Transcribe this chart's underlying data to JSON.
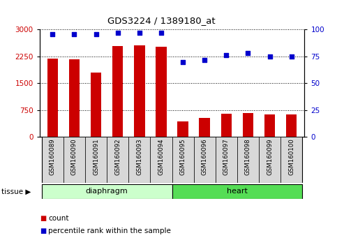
{
  "title": "GDS3224 / 1389180_at",
  "samples": [
    "GSM160089",
    "GSM160090",
    "GSM160091",
    "GSM160092",
    "GSM160093",
    "GSM160094",
    "GSM160095",
    "GSM160096",
    "GSM160097",
    "GSM160098",
    "GSM160099",
    "GSM160100"
  ],
  "counts": [
    2185,
    2165,
    1800,
    2550,
    2570,
    2520,
    430,
    530,
    650,
    680,
    630,
    630
  ],
  "percentiles": [
    96,
    96,
    96,
    97,
    97,
    97,
    70,
    72,
    76,
    78,
    75,
    75
  ],
  "bar_color": "#cc0000",
  "dot_color": "#0000cc",
  "left_ylim": [
    0,
    3000
  ],
  "right_ylim": [
    0,
    100
  ],
  "left_yticks": [
    0,
    750,
    1500,
    2250,
    3000
  ],
  "right_yticks": [
    0,
    25,
    50,
    75,
    100
  ],
  "tissue_groups": [
    {
      "label": "diaphragm",
      "start": 0,
      "end": 6,
      "color": "#ccffcc"
    },
    {
      "label": "heart",
      "start": 6,
      "end": 12,
      "color": "#55dd55"
    }
  ],
  "tissue_label": "tissue",
  "legend_count": "count",
  "legend_percentile": "percentile rank within the sample",
  "bar_width": 0.5,
  "tick_bg_color": "#d8d8d8"
}
